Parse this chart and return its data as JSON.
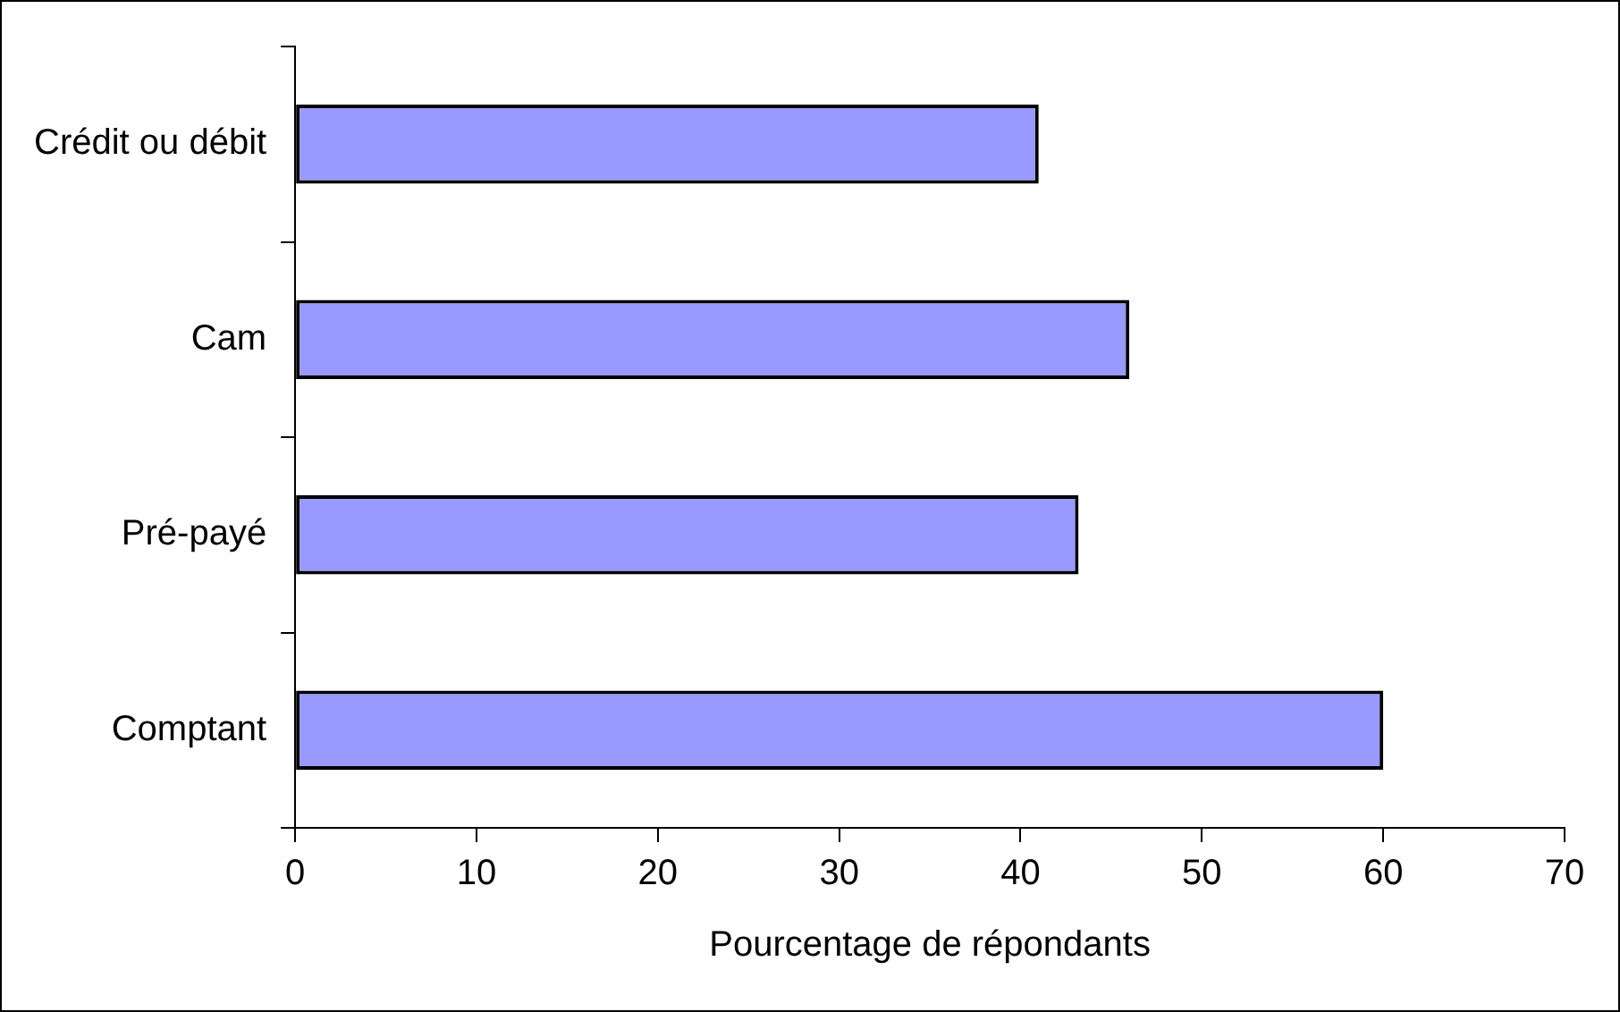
{
  "chart_data": {
    "type": "bar",
    "orientation": "horizontal",
    "xlabel": "Pourcentage de répondants",
    "categories": [
      "Crédit ou débit",
      "Cam",
      "Pré-payé",
      "Comptant"
    ],
    "values": [
      41,
      46,
      43.2,
      60
    ],
    "color": "#9999ff",
    "xlim": [
      0,
      70
    ],
    "xticks": [
      0,
      10,
      20,
      30,
      40,
      50,
      60,
      70
    ],
    "grid": false,
    "legend": false
  }
}
